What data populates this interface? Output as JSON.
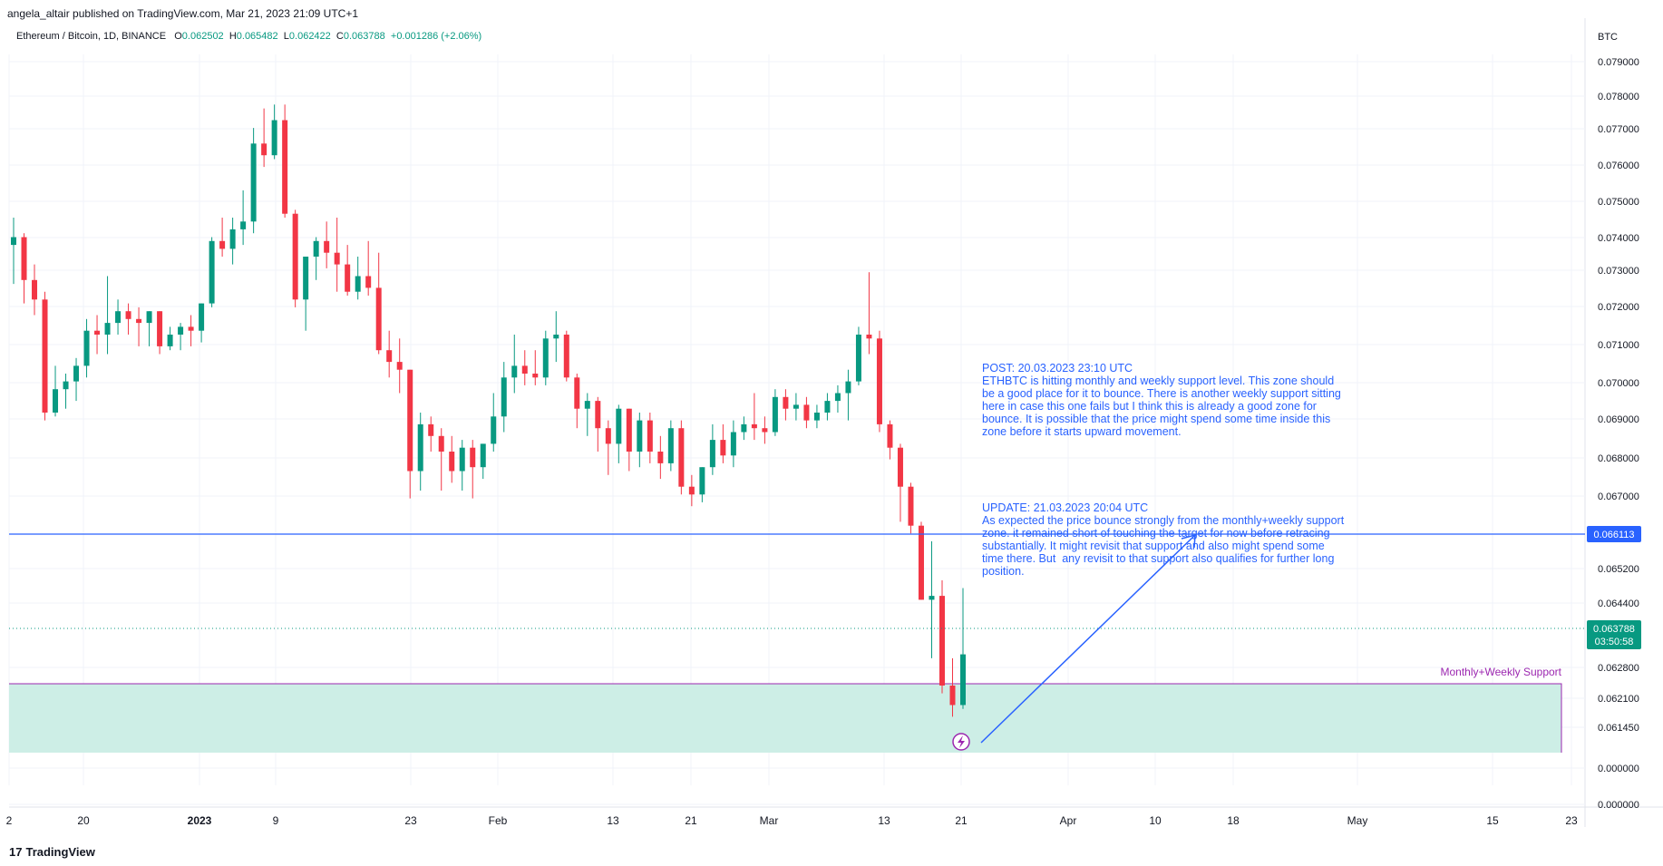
{
  "header": {
    "published_by": "angela_altair published on TradingView.com, Mar 21, 2023 21:09 UTC+1"
  },
  "symbol": {
    "name": "Ethereum / Bitcoin, 1D, BINANCE",
    "o_label": "O",
    "o_value": "0.062502",
    "h_label": "H",
    "h_value": "0.065482",
    "l_label": "L",
    "l_value": "0.062422",
    "c_label": "C",
    "c_value": "0.063788",
    "change": "+0.001286 (+2.06%)"
  },
  "annotation": {
    "post": "POST: 20.03.2023 23:10 UTC\nETHBTC is hitting monthly and weekly support level. This zone should be a good place for it to bounce. There is another weekly support sitting here in case this one fails but I think this is already a good zone for bounce. It is possible that the price might spend some time inside this zone before it starts upward movement.",
    "update": "UPDATE: 21.03.2023 20:04 UTC\nAs expected the price bounce strongly from the monthly+weekly support zone. it remained short of touching the target for now before retracing substantially. It might revisit that support and also might spend some time there. But  any revisit to that support also qualifies for further long position."
  },
  "footer": {
    "logo_text": "TradingView",
    "logo_mark": "17"
  },
  "colors": {
    "up": "#089981",
    "down": "#f23645",
    "line": "#2962ff",
    "zone": "#cdeee6",
    "support": "#9c27b0"
  },
  "chart_data": {
    "type": "candlestick",
    "currency_label": "BTC",
    "y_ticks": [
      "0.079000",
      "0.078000",
      "0.077000",
      "0.076000",
      "0.075000",
      "0.074000",
      "0.073000",
      "0.072000",
      "0.071000",
      "0.070000",
      "0.069000",
      "0.068000",
      "0.067000",
      "0.065200",
      "0.064400",
      "0.062800",
      "0.062100",
      "0.061450",
      "0.000000",
      "0.000000"
    ],
    "x_ticks": [
      "2",
      "20",
      "2023",
      "9",
      "23",
      "Feb",
      "13",
      "21",
      "Mar",
      "13",
      "21",
      "Apr",
      "10",
      "18",
      "May",
      "15",
      "23"
    ],
    "horizontal_line": {
      "value": 0.066113,
      "label": "0.066113"
    },
    "last_price": {
      "value": 0.063788,
      "label": "0.063788",
      "countdown": "03:50:58"
    },
    "support_zone": {
      "label": "Monthly+Weekly Support",
      "top": 0.0624,
      "bottom": 0.061
    },
    "candles": [
      [
        0.0743,
        0.075,
        0.0733,
        0.0745
      ],
      [
        0.0745,
        0.0746,
        0.0728,
        0.0734
      ],
      [
        0.0734,
        0.0738,
        0.0725,
        0.0729
      ],
      [
        0.0729,
        0.0731,
        0.0698,
        0.07
      ],
      [
        0.07,
        0.0712,
        0.0699,
        0.0706
      ],
      [
        0.0706,
        0.071,
        0.0701,
        0.0708
      ],
      [
        0.0708,
        0.0714,
        0.0703,
        0.0712
      ],
      [
        0.0712,
        0.0724,
        0.0709,
        0.0721
      ],
      [
        0.0721,
        0.0725,
        0.0715,
        0.072
      ],
      [
        0.072,
        0.0735,
        0.0715,
        0.0723
      ],
      [
        0.0723,
        0.0729,
        0.072,
        0.0726
      ],
      [
        0.0726,
        0.0728,
        0.072,
        0.0724
      ],
      [
        0.0724,
        0.0727,
        0.0717,
        0.0723
      ],
      [
        0.0723,
        0.0726,
        0.0717,
        0.0726
      ],
      [
        0.0726,
        0.0726,
        0.0715,
        0.0717
      ],
      [
        0.0717,
        0.0722,
        0.0716,
        0.072
      ],
      [
        0.072,
        0.0723,
        0.0716,
        0.0722
      ],
      [
        0.0722,
        0.0725,
        0.0717,
        0.0721
      ],
      [
        0.0721,
        0.0728,
        0.0718,
        0.0728
      ],
      [
        0.0728,
        0.0745,
        0.0727,
        0.0744
      ],
      [
        0.0744,
        0.075,
        0.074,
        0.0742
      ],
      [
        0.0742,
        0.075,
        0.0738,
        0.0747
      ],
      [
        0.0747,
        0.0757,
        0.0743,
        0.0749
      ],
      [
        0.0749,
        0.0773,
        0.0746,
        0.0769
      ],
      [
        0.0769,
        0.0778,
        0.0763,
        0.0766
      ],
      [
        0.0766,
        0.0779,
        0.0765,
        0.0775
      ],
      [
        0.0775,
        0.0779,
        0.075,
        0.0751
      ],
      [
        0.0751,
        0.0752,
        0.0727,
        0.0729
      ],
      [
        0.0729,
        0.074,
        0.0721,
        0.074
      ],
      [
        0.074,
        0.0745,
        0.0734,
        0.0744
      ],
      [
        0.0744,
        0.0749,
        0.0737,
        0.0741
      ],
      [
        0.0741,
        0.075,
        0.0731,
        0.0738
      ],
      [
        0.0738,
        0.0743,
        0.073,
        0.0731
      ],
      [
        0.0731,
        0.074,
        0.0729,
        0.0735
      ],
      [
        0.0735,
        0.0744,
        0.073,
        0.0732
      ],
      [
        0.0732,
        0.0741,
        0.0715,
        0.0716
      ],
      [
        0.0716,
        0.0721,
        0.0709,
        0.0713
      ],
      [
        0.0713,
        0.0719,
        0.0705,
        0.0711
      ],
      [
        0.0711,
        0.0711,
        0.0678,
        0.0685
      ],
      [
        0.0685,
        0.07,
        0.068,
        0.0697
      ],
      [
        0.0697,
        0.0699,
        0.069,
        0.0694
      ],
      [
        0.0694,
        0.0696,
        0.068,
        0.069
      ],
      [
        0.069,
        0.0694,
        0.0682,
        0.0685
      ],
      [
        0.0685,
        0.0693,
        0.068,
        0.0691
      ],
      [
        0.0691,
        0.0693,
        0.0678,
        0.0686
      ],
      [
        0.0686,
        0.0692,
        0.0683,
        0.0692
      ],
      [
        0.0692,
        0.0705,
        0.069,
        0.0699
      ],
      [
        0.0699,
        0.0713,
        0.0695,
        0.0709
      ],
      [
        0.0709,
        0.072,
        0.0705,
        0.0712
      ],
      [
        0.0712,
        0.0716,
        0.0707,
        0.071
      ],
      [
        0.071,
        0.0716,
        0.0707,
        0.0709
      ],
      [
        0.0709,
        0.0721,
        0.0707,
        0.0719
      ],
      [
        0.0719,
        0.0726,
        0.0713,
        0.072
      ],
      [
        0.072,
        0.0721,
        0.0708,
        0.0709
      ],
      [
        0.0709,
        0.071,
        0.0696,
        0.0701
      ],
      [
        0.0701,
        0.0705,
        0.0694,
        0.0703
      ],
      [
        0.0703,
        0.0704,
        0.069,
        0.0696
      ],
      [
        0.0696,
        0.0698,
        0.0684,
        0.0692
      ],
      [
        0.0692,
        0.0702,
        0.0687,
        0.0701
      ],
      [
        0.0701,
        0.0701,
        0.0685,
        0.069
      ],
      [
        0.069,
        0.07,
        0.0686,
        0.0698
      ],
      [
        0.0698,
        0.07,
        0.0687,
        0.069
      ],
      [
        0.069,
        0.0694,
        0.0683,
        0.0687
      ],
      [
        0.0687,
        0.0698,
        0.0685,
        0.0696
      ],
      [
        0.0696,
        0.0698,
        0.0679,
        0.0681
      ],
      [
        0.0681,
        0.0684,
        0.0676,
        0.0679
      ],
      [
        0.0679,
        0.0686,
        0.0677,
        0.0686
      ],
      [
        0.0686,
        0.0697,
        0.0684,
        0.0693
      ],
      [
        0.0693,
        0.0697,
        0.0687,
        0.0689
      ],
      [
        0.0689,
        0.0698,
        0.0686,
        0.0695
      ],
      [
        0.0695,
        0.0699,
        0.0693,
        0.0697
      ],
      [
        0.0697,
        0.0705,
        0.0693,
        0.0696
      ],
      [
        0.0696,
        0.0699,
        0.0692,
        0.0695
      ],
      [
        0.0695,
        0.0706,
        0.0694,
        0.0704
      ],
      [
        0.0704,
        0.0706,
        0.0698,
        0.0701
      ],
      [
        0.0701,
        0.0705,
        0.0698,
        0.0702
      ],
      [
        0.0702,
        0.0704,
        0.0696,
        0.0698
      ],
      [
        0.0698,
        0.0702,
        0.0696,
        0.07
      ],
      [
        0.07,
        0.0705,
        0.0698,
        0.0703
      ],
      [
        0.0703,
        0.0707,
        0.07,
        0.0705
      ],
      [
        0.0705,
        0.0711,
        0.0698,
        0.0708
      ],
      [
        0.0708,
        0.0722,
        0.0707,
        0.072
      ],
      [
        0.072,
        0.0736,
        0.0715,
        0.0719
      ],
      [
        0.0719,
        0.0721,
        0.0695,
        0.0697
      ],
      [
        0.0697,
        0.0698,
        0.0688,
        0.0691
      ],
      [
        0.0691,
        0.0692,
        0.0672,
        0.0681
      ],
      [
        0.0681,
        0.0682,
        0.0669,
        0.0671
      ],
      [
        0.0671,
        0.0672,
        0.0652,
        0.0652
      ],
      [
        0.0652,
        0.0667,
        0.0637,
        0.0653
      ],
      [
        0.0653,
        0.0657,
        0.0628,
        0.063
      ],
      [
        0.063,
        0.0637,
        0.0622,
        0.0625
      ],
      [
        0.0625,
        0.0655,
        0.0624,
        0.0638
      ]
    ]
  }
}
